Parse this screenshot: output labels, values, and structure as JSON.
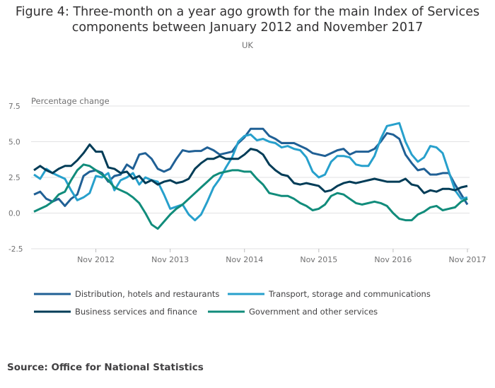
{
  "title_line1": "Figure 4: Three-month on a year ago growth for the main Index of Services",
  "title_line2": "components between January 2012 and November 2017",
  "subtitle": "UK",
  "source": "Source: Office for National Statistics",
  "chart_data": {
    "type": "line",
    "ylabel": "Percentage change",
    "ylim": [
      -2.5,
      7.5
    ],
    "yticks": [
      "-2.5",
      "0.0",
      "2.5",
      "5.0",
      "7.5"
    ],
    "ytick_values": [
      -2.5,
      0,
      2.5,
      5,
      7.5
    ],
    "x_start": "Jan 2012",
    "x_end": "Nov 2017",
    "xticks": [
      {
        "label": "Nov 2012",
        "month_index": 10
      },
      {
        "label": "Nov 2013",
        "month_index": 22
      },
      {
        "label": "Nov 2014",
        "month_index": 34
      },
      {
        "label": "Nov 2015",
        "month_index": 46
      },
      {
        "label": "Nov 2016",
        "month_index": 58
      },
      {
        "label": "Nov 2017",
        "month_index": 70
      }
    ],
    "grid": true,
    "legend_placement": "bottom",
    "series": [
      {
        "name": "Distribution, hotels and restaurants",
        "color": "#206095",
        "values": [
          1.3,
          1.5,
          1.0,
          0.8,
          1.0,
          0.5,
          1.0,
          1.3,
          2.6,
          2.9,
          3.0,
          2.8,
          2.2,
          2.6,
          2.7,
          3.4,
          3.1,
          4.1,
          4.2,
          3.8,
          3.1,
          2.9,
          3.1,
          3.8,
          4.4,
          4.3,
          4.35,
          4.35,
          4.6,
          4.4,
          4.1,
          4.2,
          4.3,
          4.9,
          5.3,
          5.9,
          5.9,
          5.9,
          5.4,
          5.2,
          4.9,
          4.9,
          4.9,
          4.7,
          4.5,
          4.2,
          4.1,
          4.0,
          4.2,
          4.4,
          4.5,
          4.1,
          4.3,
          4.3,
          4.3,
          4.5,
          5.0,
          5.6,
          5.5,
          5.2,
          4.1,
          3.5,
          3.0,
          3.1,
          2.7,
          2.7,
          2.8,
          2.8,
          2.0,
          1.3,
          0.6
        ]
      },
      {
        "name": "Transport, storage and communications",
        "color": "#27a0cc",
        "values": [
          2.7,
          2.4,
          3.1,
          2.8,
          2.6,
          2.4,
          1.6,
          0.9,
          1.1,
          1.4,
          2.6,
          2.5,
          2.8,
          1.6,
          2.3,
          2.5,
          2.8,
          2.0,
          2.5,
          2.3,
          2.2,
          1.3,
          0.3,
          0.45,
          0.6,
          -0.1,
          -0.5,
          -0.1,
          0.8,
          1.8,
          2.4,
          3.2,
          3.9,
          5.0,
          5.4,
          5.5,
          5.1,
          5.2,
          5.0,
          4.9,
          4.6,
          4.7,
          4.5,
          4.4,
          3.9,
          2.9,
          2.5,
          2.7,
          3.6,
          4.0,
          4.0,
          3.9,
          3.4,
          3.3,
          3.3,
          4.0,
          5.2,
          6.1,
          6.2,
          6.3,
          5.0,
          4.1,
          3.6,
          3.9,
          4.7,
          4.6,
          4.2,
          2.9,
          1.6,
          1.0,
          1.1
        ]
      },
      {
        "name": "Business services and finance",
        "color": "#003c57",
        "values": [
          3.0,
          3.3,
          3.0,
          2.8,
          3.1,
          3.3,
          3.3,
          3.7,
          4.2,
          4.8,
          4.3,
          4.3,
          3.2,
          3.1,
          2.8,
          2.9,
          2.4,
          2.6,
          2.1,
          2.3,
          2.0,
          2.2,
          2.3,
          2.1,
          2.2,
          2.4,
          3.1,
          3.5,
          3.8,
          3.8,
          4.0,
          3.8,
          3.8,
          3.8,
          4.1,
          4.5,
          4.4,
          4.1,
          3.4,
          3.0,
          2.7,
          2.6,
          2.1,
          2.0,
          2.1,
          2.0,
          1.9,
          1.5,
          1.6,
          1.9,
          2.1,
          2.2,
          2.1,
          2.2,
          2.3,
          2.4,
          2.3,
          2.2,
          2.2,
          2.2,
          2.4,
          2.0,
          1.9,
          1.4,
          1.6,
          1.5,
          1.7,
          1.7,
          1.6,
          1.8,
          1.9
        ]
      },
      {
        "name": "Government and other services",
        "color": "#118c7b",
        "values": [
          0.1,
          0.3,
          0.5,
          0.8,
          1.3,
          1.5,
          2.3,
          3.0,
          3.4,
          3.3,
          3.0,
          2.7,
          2.3,
          1.8,
          1.6,
          1.4,
          1.1,
          0.7,
          0.0,
          -0.8,
          -1.1,
          -0.6,
          -0.1,
          0.3,
          0.6,
          1.0,
          1.4,
          1.8,
          2.2,
          2.6,
          2.8,
          2.9,
          3.0,
          3.0,
          2.9,
          2.9,
          2.4,
          2.0,
          1.4,
          1.3,
          1.2,
          1.2,
          1.0,
          0.7,
          0.5,
          0.2,
          0.3,
          0.6,
          1.2,
          1.4,
          1.3,
          1.0,
          0.7,
          0.6,
          0.7,
          0.8,
          0.7,
          0.5,
          0.0,
          -0.4,
          -0.5,
          -0.5,
          -0.1,
          0.1,
          0.4,
          0.5,
          0.2,
          0.3,
          0.4,
          0.8,
          1.0
        ]
      }
    ]
  }
}
